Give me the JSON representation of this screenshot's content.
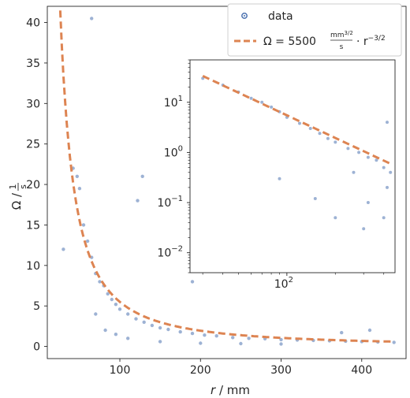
{
  "chart_data": [
    {
      "type": "scatter",
      "panel": "main",
      "xlabel_var": "r",
      "xlabel_unit": "mm",
      "ylabel_var": "Ω",
      "ylabel_num": "1",
      "ylabel_den": "s",
      "xlim": [
        10,
        455
      ],
      "ylim": [
        -1.5,
        42
      ],
      "xticks": [
        100,
        200,
        300,
        400
      ],
      "yticks": [
        0,
        5,
        10,
        15,
        20,
        25,
        30,
        35,
        40
      ],
      "legend_position": "top-right",
      "series": [
        {
          "name": "data",
          "kind": "scatter",
          "color": "#4c72b0",
          "points": [
            [
              30,
              12
            ],
            [
              42,
              22
            ],
            [
              47,
              21
            ],
            [
              50,
              19.5
            ],
            [
              55,
              15
            ],
            [
              60,
              13
            ],
            [
              65,
              11
            ],
            [
              70,
              9
            ],
            [
              75,
              8
            ],
            [
              80,
              7.5
            ],
            [
              85,
              6.5
            ],
            [
              90,
              5.8
            ],
            [
              95,
              5.2
            ],
            [
              100,
              4.6
            ],
            [
              110,
              4.0
            ],
            [
              120,
              3.4
            ],
            [
              130,
              3.0
            ],
            [
              140,
              2.6
            ],
            [
              150,
              2.3
            ],
            [
              160,
              2.1
            ],
            [
              175,
              1.8
            ],
            [
              190,
              1.6
            ],
            [
              205,
              1.4
            ],
            [
              220,
              1.3
            ],
            [
              240,
              1.1
            ],
            [
              260,
              1.0
            ],
            [
              280,
              0.95
            ],
            [
              300,
              0.85
            ],
            [
              320,
              0.8
            ],
            [
              340,
              0.75
            ],
            [
              360,
              0.7
            ],
            [
              380,
              0.65
            ],
            [
              400,
              0.6
            ],
            [
              420,
              0.55
            ],
            [
              440,
              0.5
            ],
            [
              65,
              40.5
            ],
            [
              122,
              18
            ],
            [
              190,
              8
            ],
            [
              255,
              12
            ],
            [
              128,
              21
            ],
            [
              70,
              4
            ],
            [
              82,
              2
            ],
            [
              95,
              1.5
            ],
            [
              110,
              1
            ],
            [
              150,
              0.6
            ],
            [
              200,
              0.4
            ],
            [
              250,
              0.35
            ],
            [
              300,
              0.3
            ],
            [
              375,
              1.7
            ],
            [
              410,
              2
            ]
          ]
        },
        {
          "name_lhs": "Ω = 5500",
          "name_frac_num": "mm",
          "name_frac_num_exp": "3/2",
          "name_frac_den": "s",
          "name_rhs": "· r",
          "name_rhs_exp": "−3/2",
          "kind": "line",
          "style": "dashed",
          "color": "#dd8452",
          "coefficient": 5500,
          "exponent": -1.5,
          "x_range": [
            26,
            440
          ]
        }
      ]
    },
    {
      "type": "scatter",
      "panel": "inset",
      "xscale": "log",
      "yscale": "log",
      "xlim": [
        25,
        470
      ],
      "ylim": [
        0.004,
        70
      ],
      "xtick_labels": [
        {
          "value": 100,
          "base": "10",
          "exp": "2"
        }
      ],
      "ytick_labels": [
        {
          "value": 0.01,
          "base": "10",
          "exp": "−2"
        },
        {
          "value": 0.1,
          "base": "10",
          "exp": "−1"
        },
        {
          "value": 1,
          "base": "10",
          "exp": "0"
        },
        {
          "value": 10,
          "base": "10",
          "exp": "1"
        }
      ],
      "series": [
        {
          "name": "data",
          "kind": "scatter",
          "color": "#4c72b0",
          "points": [
            [
              30,
              30
            ],
            [
              40,
              22
            ],
            [
              50,
              16
            ],
            [
              60,
              12
            ],
            [
              70,
              10
            ],
            [
              80,
              8
            ],
            [
              90,
              6.5
            ],
            [
              100,
              5
            ],
            [
              120,
              3.8
            ],
            [
              140,
              3
            ],
            [
              160,
              2.4
            ],
            [
              180,
              1.9
            ],
            [
              200,
              1.6
            ],
            [
              240,
              1.2
            ],
            [
              280,
              1
            ],
            [
              320,
              0.8
            ],
            [
              360,
              0.7
            ],
            [
              400,
              0.5
            ],
            [
              440,
              0.4
            ],
            [
              90,
              0.3
            ],
            [
              150,
              0.12
            ],
            [
              200,
              0.05
            ],
            [
              260,
              0.4
            ],
            [
              320,
              0.1
            ],
            [
              400,
              0.05
            ],
            [
              420,
              0.2
            ],
            [
              420,
              4
            ],
            [
              300,
              0.03
            ]
          ]
        },
        {
          "kind": "line",
          "style": "dashed",
          "color": "#dd8452",
          "coefficient": 5500,
          "exponent": -1.5,
          "x_range": [
            30,
            440
          ]
        }
      ]
    }
  ]
}
